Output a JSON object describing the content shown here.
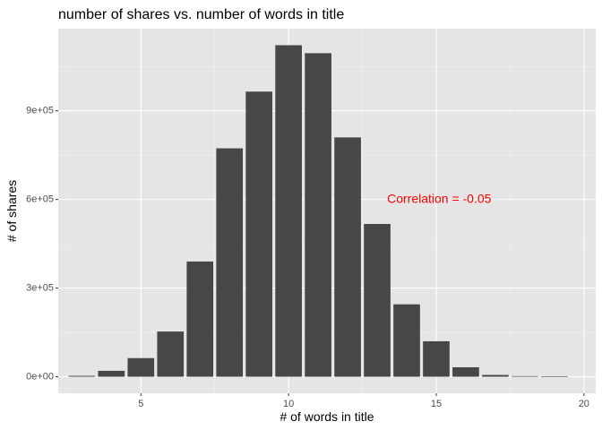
{
  "chart_data": {
    "type": "bar",
    "title": "number of shares vs. number of words in title",
    "xlabel": "# of words in title",
    "ylabel": "# of shares",
    "x": [
      3,
      4,
      5,
      6,
      7,
      8,
      9,
      10,
      11,
      12,
      13,
      14,
      15,
      16,
      17,
      18,
      19
    ],
    "values": [
      3000,
      20000,
      63000,
      153000,
      390000,
      773000,
      965000,
      1122000,
      1095000,
      810000,
      517000,
      245000,
      120000,
      32000,
      6000,
      2000,
      1500
    ],
    "xlim": [
      2.2,
      20.4
    ],
    "ylim": [
      -56000,
      1178000
    ],
    "xticks": [
      5,
      10,
      15,
      20
    ],
    "xtick_labels": [
      "5",
      "10",
      "15",
      "20"
    ],
    "yticks": [
      0,
      300000,
      600000,
      900000
    ],
    "ytick_labels": [
      "0e+00",
      "3e+05",
      "6e+05",
      "9e+05"
    ],
    "grid": true,
    "bar_color": "#474747",
    "panel_background": "#e5e5e5",
    "annotation": {
      "text": "Correlation = -0.05",
      "x": 15.1,
      "y": 600000,
      "color": "#ff0000"
    }
  }
}
